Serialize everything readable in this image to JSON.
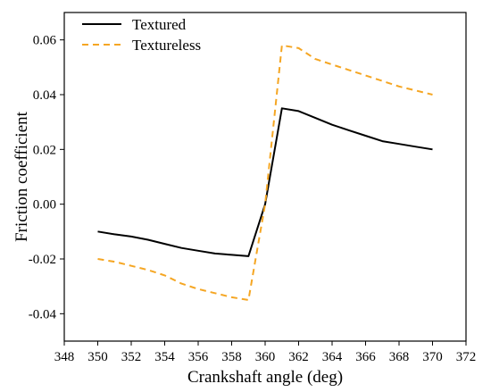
{
  "chart_data": {
    "type": "line",
    "xlabel": "Crankshaft angle (deg)",
    "ylabel": "Friction coefficient",
    "xlim": [
      348,
      372
    ],
    "ylim": [
      -0.05,
      0.07
    ],
    "xticks": [
      348,
      350,
      352,
      354,
      356,
      358,
      360,
      362,
      364,
      366,
      368,
      370,
      372
    ],
    "xtick_labels": [
      "348",
      "350",
      "352",
      "354",
      "356",
      "358",
      "360",
      "362",
      "364",
      "366",
      "368",
      "370",
      "372"
    ],
    "yticks": [
      -0.04,
      -0.02,
      0.0,
      0.02,
      0.04,
      0.06
    ],
    "ytick_labels": [
      "-0.04",
      "-0.02",
      "0.00",
      "0.02",
      "0.04",
      "0.06"
    ],
    "grid": false,
    "legend_position": "top-left",
    "series": [
      {
        "name": "Textured",
        "color": "#000000",
        "style": "solid",
        "x": [
          350,
          351,
          352,
          353,
          354,
          355,
          356,
          357,
          358,
          359,
          360,
          361,
          362,
          363,
          364,
          365,
          366,
          367,
          368,
          369,
          370
        ],
        "y": [
          -0.01,
          -0.011,
          -0.0118,
          -0.013,
          -0.0145,
          -0.016,
          -0.017,
          -0.018,
          -0.0185,
          -0.019,
          0.0,
          0.035,
          0.034,
          0.0315,
          0.029,
          0.027,
          0.025,
          0.023,
          0.022,
          0.021,
          0.02
        ]
      },
      {
        "name": "Textureless",
        "color": "#f5a623",
        "style": "dashed",
        "x": [
          350,
          351,
          352,
          353,
          354,
          355,
          356,
          357,
          358,
          359,
          360,
          361,
          362,
          363,
          364,
          365,
          366,
          367,
          368,
          369,
          370
        ],
        "y": [
          -0.02,
          -0.021,
          -0.0225,
          -0.024,
          -0.026,
          -0.029,
          -0.031,
          -0.0325,
          -0.034,
          -0.035,
          0.0,
          0.058,
          0.057,
          0.053,
          0.051,
          0.049,
          0.047,
          0.045,
          0.043,
          0.0415,
          0.04
        ]
      }
    ]
  }
}
